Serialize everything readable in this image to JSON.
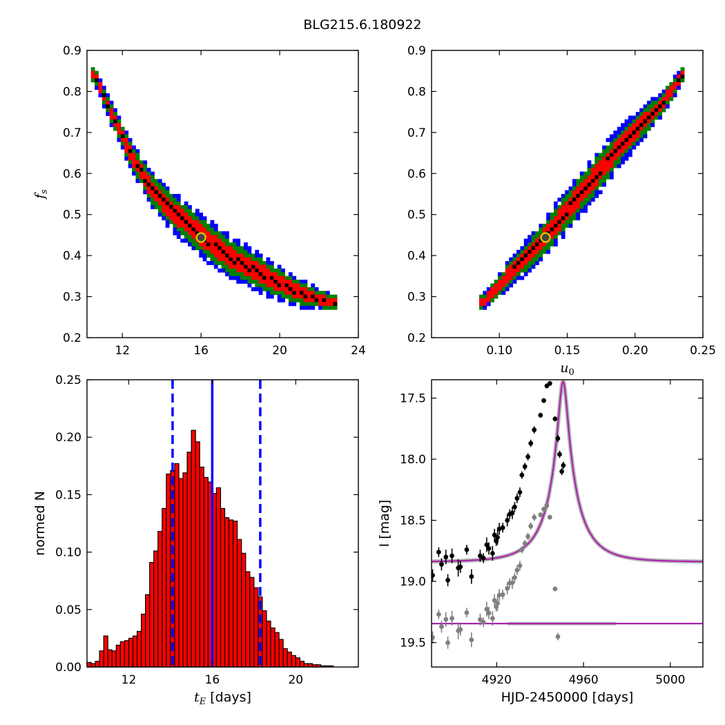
{
  "figure": {
    "suptitle": "BLG215.6.180922"
  },
  "chart_data": [
    {
      "id": "fs-vs-tE",
      "type": "heatmap",
      "xlabel": "",
      "ylabel": "f_s",
      "xlim": [
        10.2,
        24
      ],
      "ylim": [
        0.2,
        0.9
      ],
      "xticks": [
        12,
        16,
        20,
        24
      ],
      "yticks": [
        0.2,
        0.3,
        0.4,
        0.5,
        0.6,
        0.7,
        0.8,
        0.9
      ],
      "xtick_labels": [
        "12",
        "16",
        "20",
        "24"
      ],
      "ytick_labels": [
        "0.2",
        "0.3",
        "0.4",
        "0.5",
        "0.6",
        "0.7",
        "0.8",
        "0.9"
      ],
      "confidence_colors": [
        "#000000",
        "#ff0000",
        "#008000",
        "#0000ff"
      ],
      "ridge": [
        [
          10.6,
          0.84
        ],
        [
          11.5,
          0.74
        ],
        [
          12.5,
          0.64
        ],
        [
          13.5,
          0.56
        ],
        [
          14.5,
          0.51
        ],
        [
          15.5,
          0.47
        ],
        [
          16.5,
          0.43
        ],
        [
          17.5,
          0.395
        ],
        [
          18.5,
          0.37
        ],
        [
          19.5,
          0.345
        ],
        [
          20.5,
          0.32
        ],
        [
          21.5,
          0.3
        ],
        [
          22.8,
          0.285
        ]
      ],
      "best_fit": {
        "x": 16.0,
        "y": 0.444
      }
    },
    {
      "id": "fs-vs-u0",
      "type": "heatmap",
      "xlabel": "u_0",
      "ylabel": "",
      "xlim": [
        0.05,
        0.25
      ],
      "ylim": [
        0.2,
        0.9
      ],
      "xticks": [
        0.1,
        0.15,
        0.2,
        0.25
      ],
      "yticks": [
        0.2,
        0.3,
        0.4,
        0.5,
        0.6,
        0.7,
        0.8,
        0.9
      ],
      "xtick_labels": [
        "0.10",
        "0.15",
        "0.20",
        "0.25"
      ],
      "ytick_labels": [
        "0.2",
        "0.3",
        "0.4",
        "0.5",
        "0.6",
        "0.7",
        "0.8",
        "0.9"
      ],
      "confidence_colors": [
        "#000000",
        "#ff0000",
        "#008000",
        "#0000ff"
      ],
      "ridge": [
        [
          0.088,
          0.285
        ],
        [
          0.1,
          0.33
        ],
        [
          0.115,
          0.38
        ],
        [
          0.13,
          0.43
        ],
        [
          0.145,
          0.49
        ],
        [
          0.16,
          0.55
        ],
        [
          0.175,
          0.61
        ],
        [
          0.19,
          0.67
        ],
        [
          0.205,
          0.72
        ],
        [
          0.22,
          0.77
        ],
        [
          0.235,
          0.84
        ]
      ],
      "best_fit": {
        "x": 0.134,
        "y": 0.444
      }
    },
    {
      "id": "tE-histogram",
      "type": "bar",
      "xlabel": "t_E [days]",
      "ylabel": "normed N",
      "xlim": [
        10.0,
        23.0
      ],
      "ylim": [
        0.0,
        0.25
      ],
      "xticks": [
        12,
        16,
        20
      ],
      "yticks": [
        0.0,
        0.05,
        0.1,
        0.15,
        0.2,
        0.25
      ],
      "xtick_labels": [
        "12",
        "16",
        "20"
      ],
      "ytick_labels": [
        "0.00",
        "0.05",
        "0.10",
        "0.15",
        "0.20",
        "0.25"
      ],
      "bin_start": 10.0,
      "bin_width": 0.2,
      "values": [
        0.004,
        0.003,
        0.005,
        0.014,
        0.027,
        0.015,
        0.014,
        0.019,
        0.022,
        0.023,
        0.025,
        0.027,
        0.031,
        0.046,
        0.063,
        0.091,
        0.101,
        0.118,
        0.138,
        0.168,
        0.171,
        0.177,
        0.164,
        0.169,
        0.187,
        0.206,
        0.196,
        0.174,
        0.165,
        0.161,
        0.151,
        0.156,
        0.138,
        0.13,
        0.128,
        0.127,
        0.111,
        0.099,
        0.083,
        0.078,
        0.069,
        0.061,
        0.049,
        0.04,
        0.034,
        0.03,
        0.024,
        0.016,
        0.013,
        0.01,
        0.008,
        0.005,
        0.003,
        0.003,
        0.002,
        0.002,
        0.001,
        0.001,
        0.001,
        0.0
      ],
      "bar_color": "#ff0000",
      "vlines": [
        {
          "x": 16.0,
          "style": "solid",
          "color": "#0000ff"
        },
        {
          "x": 14.1,
          "style": "dashed",
          "color": "#0000ff"
        },
        {
          "x": 18.3,
          "style": "dashed",
          "color": "#0000ff"
        }
      ]
    },
    {
      "id": "light-curve",
      "type": "scatter",
      "xlabel": "HJD-2450000 [days]",
      "ylabel": "I [mag]",
      "xlim": [
        4890,
        5015
      ],
      "ylim": [
        19.7,
        17.35
      ],
      "xticks": [
        4920,
        4960,
        5000
      ],
      "yticks": [
        17.5,
        18.0,
        18.5,
        19.0,
        19.5
      ],
      "xtick_labels": [
        "4920",
        "4960",
        "5000"
      ],
      "ytick_labels": [
        "17.5",
        "18.0",
        "18.5",
        "19.0",
        "19.5"
      ],
      "model": {
        "t0": 4950.6,
        "tE": 16.0,
        "u0": 0.134,
        "fs": 0.444,
        "base_mag": 18.84,
        "color": "#aa22aa"
      },
      "residual_baseline": 19.345,
      "data": [
        [
          4890.5,
          18.95,
          0.05
        ],
        [
          4893.3,
          18.76,
          0.04
        ],
        [
          4894.6,
          18.86,
          0.05
        ],
        [
          4896.6,
          18.8,
          0.06
        ],
        [
          4897.5,
          18.99,
          0.05
        ],
        [
          4899.4,
          18.79,
          0.06
        ],
        [
          4902.3,
          18.89,
          0.07
        ],
        [
          4903.3,
          18.88,
          0.05
        ],
        [
          4906.2,
          18.74,
          0.04
        ],
        [
          4908.4,
          18.96,
          0.06
        ],
        [
          4912.4,
          18.79,
          0.05
        ],
        [
          4913.9,
          18.81,
          0.04
        ],
        [
          4915.4,
          18.7,
          0.06
        ],
        [
          4916.4,
          18.73,
          0.05
        ],
        [
          4918.1,
          18.77,
          0.06
        ],
        [
          4919.0,
          18.62,
          0.05
        ],
        [
          4919.8,
          18.67,
          0.04
        ],
        [
          4920.4,
          18.64,
          0.06
        ],
        [
          4921.2,
          18.57,
          0.05
        ],
        [
          4922.8,
          18.56,
          0.04
        ],
        [
          4924.9,
          18.5,
          0.05
        ],
        [
          4926.0,
          18.45,
          0.04
        ],
        [
          4927.2,
          18.44,
          0.05
        ],
        [
          4928.3,
          18.39,
          0.04
        ],
        [
          4929.4,
          18.32,
          0.04
        ],
        [
          4930.7,
          18.27,
          0.04
        ],
        [
          4931.6,
          18.13,
          0.03
        ],
        [
          4933.0,
          18.06,
          0.03
        ],
        [
          4934.4,
          17.98,
          0.03
        ],
        [
          4935.7,
          17.87,
          0.03
        ],
        [
          4937.3,
          17.76,
          0.03
        ],
        [
          4940.2,
          17.64,
          0.02
        ],
        [
          4941.7,
          17.52,
          0.02
        ],
        [
          4943.1,
          17.4,
          0.02
        ],
        [
          4944.5,
          17.38,
          0.02
        ],
        [
          4946.9,
          17.67,
          0.02
        ],
        [
          4948.2,
          17.83,
          0.03
        ],
        [
          4949.0,
          17.96,
          0.03
        ],
        [
          4950.0,
          18.1,
          0.03
        ],
        [
          4950.7,
          18.05,
          0.03
        ]
      ]
    }
  ]
}
